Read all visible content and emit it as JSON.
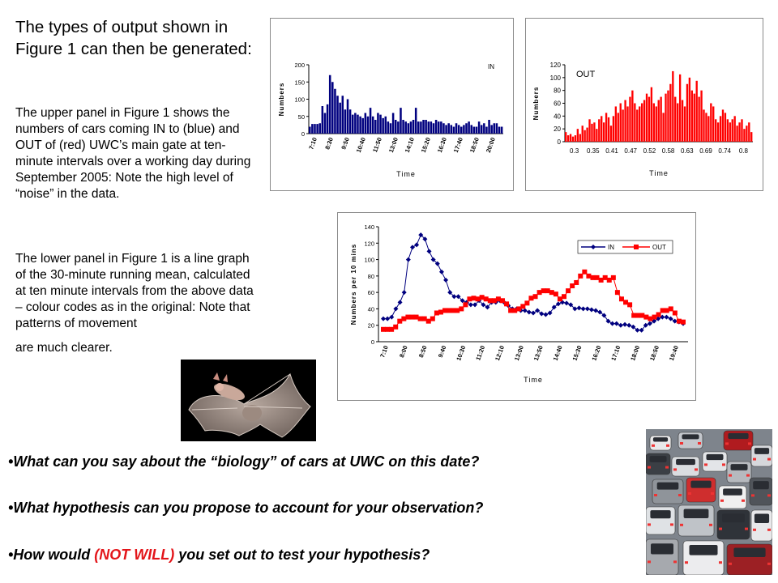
{
  "text": {
    "heading": "The types of output shown in Figure 1 can then be generated:",
    "para1": "The upper panel in Figure 1 shows the numbers of cars coming IN to (blue) and OUT of (red) UWC’s main gate at ten-minute intervals over a working day during September 2005: Note the high level of “noise” in the data.",
    "para2": "The lower panel in Figure 1 is a line graph of the 30-minute running mean, calculated at ten minute intervals from the above data – colour codes as in the original: Note that patterns of movement",
    "para2_end": "are much clearer.",
    "q1": "•What can you say about the “biology” of cars at UWC on this date?",
    "q2": "•What hypothesis can you propose to account for your observation?",
    "q3_pre": "•How would ",
    "q3_red": "(NOT WILL)",
    "q3_post": " you set out to test your hypothesis?"
  },
  "colors": {
    "in": "#00007f",
    "out": "#ff0000",
    "emphasis": "#e3151a"
  },
  "chart_data": [
    {
      "type": "bar",
      "legend_text": "IN",
      "xlabel": "Time",
      "ylabel": "Numbers",
      "ylim": [
        0,
        200
      ],
      "yticks": [
        0,
        50,
        100,
        150,
        200
      ],
      "xtick_labels": [
        "7:10",
        "8:30",
        "9:50",
        "10:40",
        "11:50",
        "13:00",
        "14:10",
        "15:20",
        "16:30",
        "17:40",
        "18:50",
        "20:00"
      ],
      "values": [
        20,
        28,
        28,
        28,
        30,
        80,
        60,
        85,
        170,
        150,
        130,
        110,
        90,
        110,
        70,
        100,
        70,
        55,
        60,
        55,
        50,
        45,
        60,
        50,
        75,
        50,
        40,
        60,
        55,
        45,
        50,
        35,
        30,
        60,
        40,
        35,
        75,
        40,
        35,
        30,
        35,
        40,
        75,
        35,
        35,
        40,
        40,
        35,
        35,
        30,
        40,
        35,
        35,
        30,
        25,
        30,
        25,
        20,
        30,
        25,
        20,
        25,
        30,
        35,
        25,
        20,
        20,
        35,
        25,
        30,
        20,
        40,
        25,
        30,
        30,
        20,
        20
      ]
    },
    {
      "type": "bar",
      "legend_text": "OUT",
      "xlabel": "Time",
      "ylabel": "Numbers",
      "ylim": [
        0,
        120
      ],
      "yticks": [
        0,
        20,
        40,
        60,
        80,
        100,
        120
      ],
      "xtick_labels": [
        "0.3",
        "0.35",
        "0.41",
        "0.47",
        "0.52",
        "0.58",
        "0.63",
        "0.69",
        "0.74",
        "0.8"
      ],
      "values": [
        15,
        10,
        12,
        8,
        10,
        20,
        12,
        25,
        18,
        22,
        35,
        28,
        30,
        20,
        35,
        40,
        30,
        45,
        38,
        25,
        40,
        55,
        45,
        60,
        50,
        65,
        55,
        70,
        80,
        60,
        50,
        55,
        60,
        65,
        75,
        70,
        85,
        60,
        55,
        65,
        70,
        45,
        75,
        80,
        90,
        110,
        70,
        60,
        105,
        65,
        55,
        90,
        100,
        80,
        75,
        95,
        70,
        80,
        50,
        45,
        40,
        60,
        55,
        35,
        30,
        40,
        50,
        45,
        35,
        30,
        35,
        40,
        25,
        30,
        35,
        20,
        25,
        30,
        15
      ]
    },
    {
      "type": "line",
      "xlabel": "Time",
      "ylabel": "Numbers per 10 mins",
      "ylim": [
        0,
        140
      ],
      "yticks": [
        0,
        20,
        40,
        60,
        80,
        100,
        120,
        140
      ],
      "xtick_labels": [
        "7:10",
        "8:00",
        "8:50",
        "9:40",
        "10:30",
        "11:20",
        "12:10",
        "13:00",
        "13:50",
        "14:40",
        "15:30",
        "16:20",
        "17:10",
        "18:00",
        "18:50",
        "19:40"
      ],
      "legend_position": "top-right",
      "series": [
        {
          "name": "IN",
          "values": [
            28,
            28,
            30,
            40,
            48,
            60,
            100,
            115,
            118,
            130,
            125,
            110,
            100,
            95,
            85,
            75,
            60,
            55,
            55,
            50,
            48,
            45,
            45,
            50,
            45,
            42,
            48,
            48,
            50,
            48,
            44,
            40,
            40,
            38,
            38,
            36,
            35,
            38,
            34,
            33,
            35,
            42,
            46,
            48,
            47,
            45,
            40,
            41,
            40,
            40,
            39,
            38,
            36,
            32,
            25,
            22,
            22,
            20,
            21,
            20,
            18,
            14,
            14,
            20,
            22,
            25,
            28,
            30,
            30,
            28,
            25,
            24,
            22
          ]
        },
        {
          "name": "OUT",
          "values": [
            15,
            15,
            15,
            18,
            25,
            28,
            30,
            30,
            30,
            28,
            28,
            25,
            28,
            35,
            36,
            38,
            38,
            38,
            38,
            40,
            45,
            52,
            53,
            52,
            54,
            52,
            50,
            50,
            52,
            50,
            46,
            38,
            38,
            40,
            43,
            47,
            53,
            55,
            60,
            62,
            62,
            60,
            58,
            52,
            55,
            62,
            68,
            72,
            80,
            85,
            80,
            78,
            78,
            75,
            78,
            75,
            78,
            60,
            52,
            48,
            45,
            32,
            32,
            32,
            30,
            28,
            30,
            33,
            38,
            38,
            40,
            35,
            25,
            24
          ]
        }
      ]
    }
  ]
}
